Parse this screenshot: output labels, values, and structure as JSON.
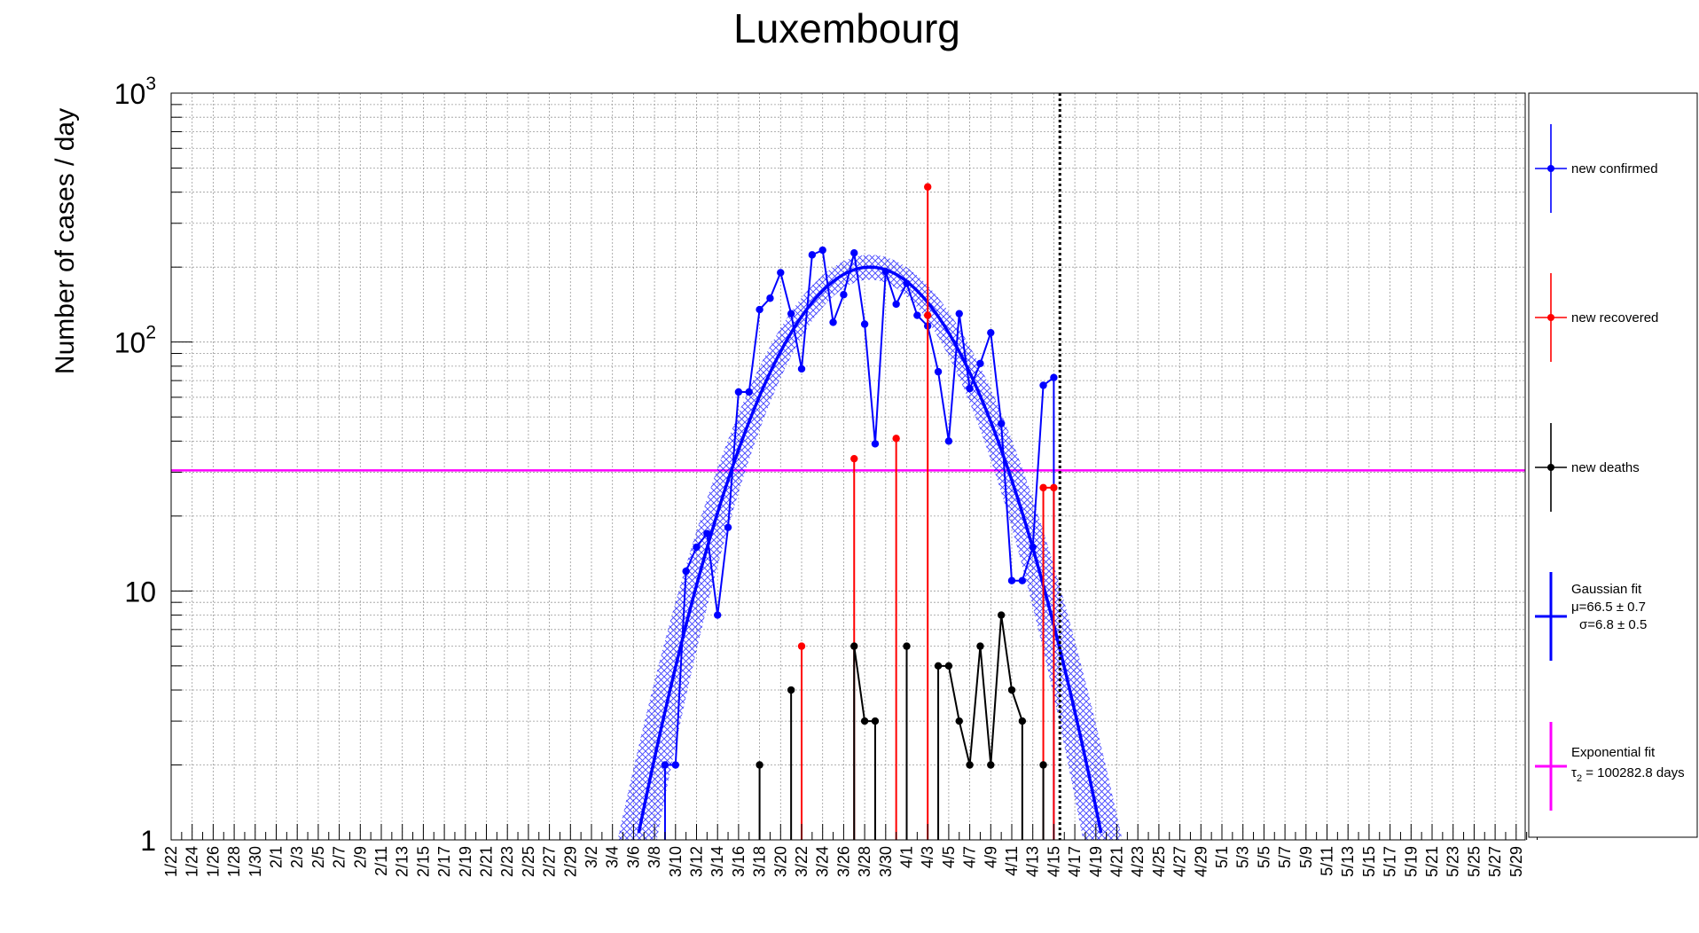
{
  "chart_data": {
    "type": "line",
    "title": "Luxembourg",
    "ylabel": "Number of cases / day",
    "xlabel": "",
    "yscale": "log",
    "ylim": [
      1,
      1000
    ],
    "y_tick_labels": [
      "1",
      "10",
      "10",
      "10"
    ],
    "y_tick_exponents": [
      "",
      "",
      "2",
      "3"
    ],
    "x_ticks": [
      "1/22",
      "1/24",
      "1/26",
      "1/28",
      "1/30",
      "2/1",
      "2/3",
      "2/5",
      "2/7",
      "2/9",
      "2/11",
      "2/13",
      "2/15",
      "2/17",
      "2/19",
      "2/21",
      "2/23",
      "2/25",
      "2/27",
      "2/29",
      "3/2",
      "3/4",
      "3/6",
      "3/8",
      "3/10",
      "3/12",
      "3/14",
      "3/16",
      "3/18",
      "3/20",
      "3/22",
      "3/24",
      "3/26",
      "3/28",
      "3/30",
      "4/1",
      "4/3",
      "4/5",
      "4/7",
      "4/9",
      "4/11",
      "4/13",
      "4/15",
      "4/17",
      "4/19",
      "4/21",
      "4/23",
      "4/25",
      "4/27",
      "4/29",
      "5/1",
      "5/3",
      "5/5",
      "5/7",
      "5/9",
      "5/11",
      "5/13",
      "5/15",
      "5/17",
      "5/19",
      "5/21",
      "5/23",
      "5/25",
      "5/27",
      "5/29"
    ],
    "x_domain": [
      "1/22",
      "5/31"
    ],
    "current_date": "4/16",
    "grid": true,
    "legend_position": "right",
    "series": [
      {
        "name": "new confirmed",
        "color": "#0000ff",
        "points": [
          [
            "3/9",
            2
          ],
          [
            "3/10",
            2
          ],
          [
            "3/11",
            12
          ],
          [
            "3/12",
            15
          ],
          [
            "3/13",
            17
          ],
          [
            "3/14",
            8
          ],
          [
            "3/15",
            18
          ],
          [
            "3/16",
            63
          ],
          [
            "3/17",
            63
          ],
          [
            "3/18",
            135
          ],
          [
            "3/19",
            150
          ],
          [
            "3/20",
            190
          ],
          [
            "3/21",
            130
          ],
          [
            "3/22",
            78
          ],
          [
            "3/23",
            224
          ],
          [
            "3/24",
            234
          ],
          [
            "3/25",
            120
          ],
          [
            "3/26",
            155
          ],
          [
            "3/27",
            228
          ],
          [
            "3/28",
            118
          ],
          [
            "3/29",
            39
          ],
          [
            "3/30",
            192
          ],
          [
            "3/31",
            142
          ],
          [
            "4/1",
            172
          ],
          [
            "4/2",
            128
          ],
          [
            "4/3",
            116
          ],
          [
            "4/4",
            76
          ],
          [
            "4/5",
            40
          ],
          [
            "4/6",
            130
          ],
          [
            "4/7",
            65
          ],
          [
            "4/8",
            82
          ],
          [
            "4/9",
            109
          ],
          [
            "4/10",
            47
          ],
          [
            "4/11",
            11
          ],
          [
            "4/12",
            11
          ],
          [
            "4/13",
            15
          ],
          [
            "4/14",
            67
          ],
          [
            "4/15",
            72
          ]
        ]
      },
      {
        "name": "new recovered",
        "color": "#ff0000",
        "points": [
          [
            "3/22",
            6
          ],
          [
            "3/27",
            34
          ],
          [
            "3/31",
            41
          ],
          [
            "4/3",
            420
          ],
          [
            "4/3",
            128
          ],
          [
            "4/14",
            26
          ],
          [
            "4/15",
            26
          ]
        ]
      },
      {
        "name": "new deaths",
        "color": "#000000",
        "points": [
          [
            "3/18",
            2
          ],
          [
            "3/21",
            4
          ],
          [
            "3/27",
            6
          ],
          [
            "3/28",
            3
          ],
          [
            "3/29",
            3
          ],
          [
            "4/1",
            6
          ],
          [
            "4/4",
            5
          ],
          [
            "4/5",
            5
          ],
          [
            "4/6",
            3
          ],
          [
            "4/7",
            2
          ],
          [
            "4/8",
            6
          ],
          [
            "4/9",
            2
          ],
          [
            "4/10",
            8
          ],
          [
            "4/11",
            4
          ],
          [
            "4/12",
            3
          ],
          [
            "4/14",
            2
          ]
        ]
      }
    ],
    "fits": [
      {
        "name": "Gaussian fit",
        "color": "#0000ff",
        "label_lines": [
          "Gaussian fit",
          "μ=66.5 ± 0.7",
          "σ=6.8 ± 0.5"
        ],
        "mu_day_index": 66.5,
        "sigma": 6.8,
        "peak": 200
      },
      {
        "name": "Exponential fit",
        "color": "#ff00ff",
        "label_lines": [
          "Exponential fit",
          "τ",
          "2",
          " = 100282.8 days"
        ],
        "constant_value": 30.5
      }
    ]
  }
}
